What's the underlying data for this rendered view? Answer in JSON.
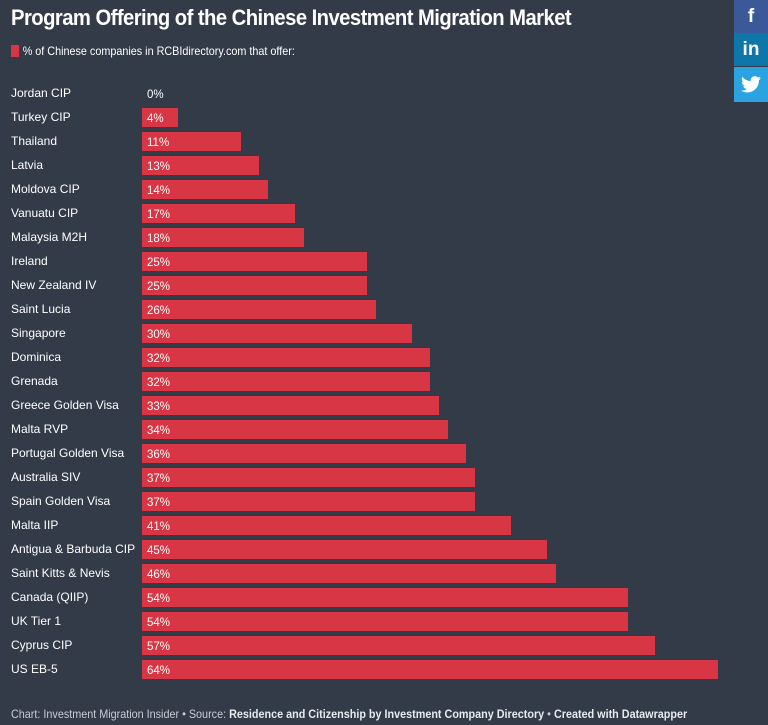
{
  "chart_data": {
    "type": "bar",
    "orientation": "horizontal",
    "title": "Program Offering of the Chinese Investment Migration Market",
    "legend": "% of Chinese companies in RCBIdirectory.com that offer:",
    "categories": [
      "Jordan CIP",
      "Turkey CIP",
      "Thailand",
      "Latvia",
      "Moldova CIP",
      "Vanuatu CIP",
      "Malaysia M2H",
      "Ireland",
      "New Zealand IV",
      "Saint Lucia",
      "Singapore",
      "Dominica",
      "Grenada",
      "Greece Golden Visa",
      "Malta RVP",
      "Portugal Golden Visa",
      "Australia SIV",
      "Spain Golden Visa",
      "Malta IIP",
      "Antigua & Barbuda CIP",
      "Saint Kitts & Nevis",
      "Canada (QIIP)",
      "UK Tier 1",
      "Cyprus CIP",
      "US EB-5"
    ],
    "values": [
      0,
      4,
      11,
      13,
      14,
      17,
      18,
      25,
      25,
      26,
      30,
      32,
      32,
      33,
      34,
      36,
      37,
      37,
      41,
      45,
      46,
      54,
      54,
      57,
      64
    ],
    "unit": "%",
    "xlim": [
      0,
      64
    ],
    "color": "#d93645"
  },
  "social": {
    "facebook": "f",
    "linkedin": "in",
    "twitter_icon": "twitter-bird"
  },
  "footer": {
    "chart_prefix": "Chart: Investment Migration Insider • Source: ",
    "source": "Residence and Citizenship by Investment Company Directory",
    "sep": " • ",
    "created": "Created with Datawrapper"
  },
  "colors": {
    "background": "#333a48",
    "facebook": "#3b5998",
    "linkedin": "#0e76a8",
    "twitter": "#2aa3e0"
  }
}
